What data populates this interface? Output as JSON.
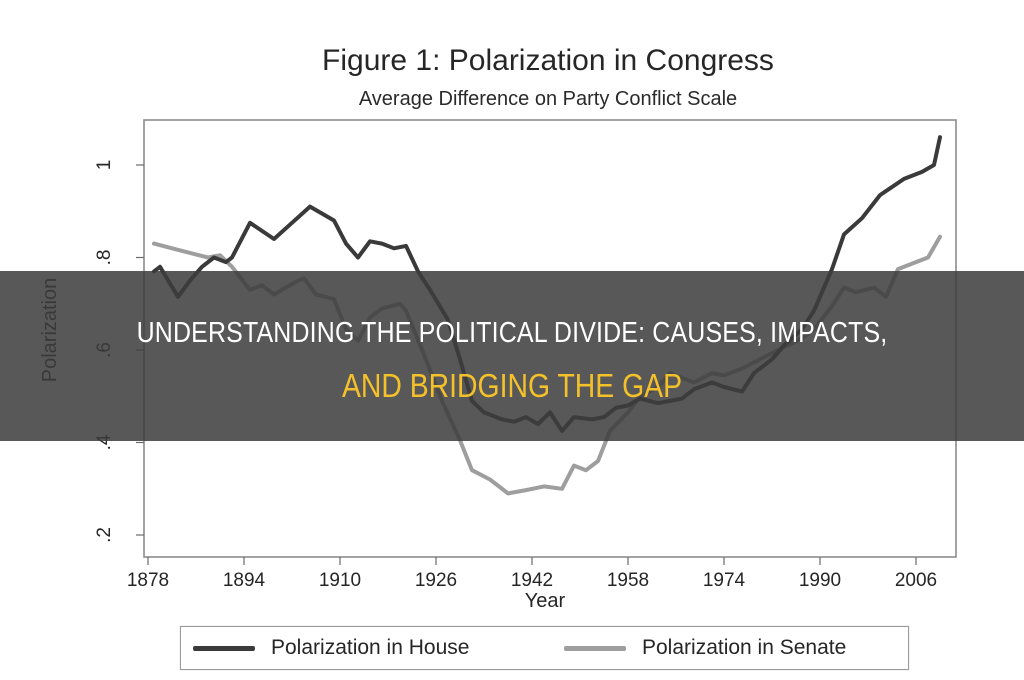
{
  "chart_data": {
    "type": "line",
    "title": "Figure 1: Polarization in Congress",
    "subtitle": "Average Difference on Party Conflict Scale",
    "xlabel": "Year",
    "ylabel": "Polarization",
    "xlim": [
      1877,
      2012
    ],
    "ylim": [
      0.18,
      1.1
    ],
    "x_ticks": [
      1878,
      1894,
      1910,
      1926,
      1942,
      1958,
      1974,
      1990,
      2006
    ],
    "y_ticks": [
      0.2,
      0.4,
      0.6,
      0.8,
      1.0
    ],
    "y_tick_labels": [
      ".2",
      ".4",
      ".6",
      ".8",
      "1"
    ],
    "grid": false,
    "legend_position": "bottom",
    "series": [
      {
        "name": "Polarization in House",
        "color": "#3a3a3a",
        "x": [
          1879,
          1880,
          1883,
          1885,
          1887,
          1889,
          1891,
          1892,
          1895,
          1899,
          1902,
          1905,
          1909,
          1911,
          1913,
          1915,
          1917,
          1919,
          1921,
          1923,
          1925,
          1928,
          1930,
          1932,
          1934,
          1937,
          1939,
          1941,
          1943,
          1945,
          1947,
          1949,
          1952,
          1954,
          1956,
          1958,
          1960,
          1963,
          1965,
          1967,
          1969,
          1972,
          1974,
          1977,
          1979,
          1982,
          1984,
          1987,
          1989,
          1992,
          1994,
          1997,
          2000,
          2004,
          2007,
          2009,
          2010
        ],
        "values": [
          0.77,
          0.78,
          0.715,
          0.75,
          0.78,
          0.8,
          0.79,
          0.8,
          0.875,
          0.84,
          0.875,
          0.91,
          0.88,
          0.83,
          0.8,
          0.835,
          0.83,
          0.82,
          0.825,
          0.77,
          0.73,
          0.665,
          0.58,
          0.49,
          0.465,
          0.45,
          0.445,
          0.455,
          0.44,
          0.465,
          0.425,
          0.455,
          0.45,
          0.455,
          0.475,
          0.48,
          0.495,
          0.485,
          0.49,
          0.495,
          0.515,
          0.53,
          0.52,
          0.51,
          0.55,
          0.58,
          0.61,
          0.645,
          0.685,
          0.775,
          0.85,
          0.885,
          0.935,
          0.97,
          0.985,
          1.0,
          1.06
        ]
      },
      {
        "name": "Polarization in Senate",
        "color": "#9e9e9e",
        "x": [
          1879,
          1882,
          1885,
          1888,
          1890,
          1892,
          1895,
          1897,
          1899,
          1903,
          1904,
          1906,
          1909,
          1911,
          1913,
          1915,
          1917,
          1920,
          1921,
          1924,
          1927,
          1930,
          1932,
          1935,
          1938,
          1941,
          1944,
          1947,
          1949,
          1951,
          1953,
          1955,
          1958,
          1960,
          1963,
          1965,
          1967,
          1969,
          1972,
          1974,
          1977,
          1980,
          1983,
          1987,
          1989,
          1992,
          1994,
          1996,
          1999,
          2001,
          2003,
          2006,
          2008,
          2010
        ],
        "values": [
          0.83,
          0.82,
          0.81,
          0.8,
          0.805,
          0.78,
          0.73,
          0.74,
          0.72,
          0.75,
          0.755,
          0.72,
          0.71,
          0.645,
          0.62,
          0.67,
          0.69,
          0.7,
          0.685,
          0.59,
          0.49,
          0.405,
          0.34,
          0.32,
          0.29,
          0.297,
          0.305,
          0.3,
          0.35,
          0.34,
          0.36,
          0.425,
          0.465,
          0.5,
          0.52,
          0.55,
          0.54,
          0.53,
          0.55,
          0.545,
          0.56,
          0.58,
          0.6,
          0.625,
          0.645,
          0.695,
          0.735,
          0.725,
          0.735,
          0.715,
          0.775,
          0.79,
          0.8,
          0.845
        ]
      }
    ]
  },
  "overlay": {
    "headline_line1": "UNDERSTANDING THE POLITICAL DIVIDE: CAUSES, IMPACTS,",
    "headline_line2": "AND BRIDGING THE GAP",
    "line1_color": "#ffffff",
    "line2_color": "#f5c12a",
    "banner_color": "#4a4a4a"
  },
  "legend": {
    "items": [
      {
        "label": "Polarization in House",
        "color": "#3a3a3a"
      },
      {
        "label": "Polarization in Senate",
        "color": "#9e9e9e"
      }
    ]
  }
}
